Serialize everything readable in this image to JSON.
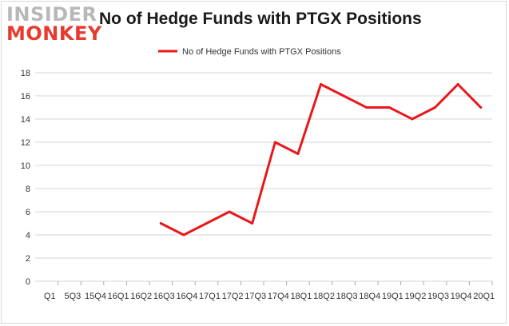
{
  "logo": {
    "line1": "INSIDER",
    "line2": "MONKEY"
  },
  "chart_data": {
    "type": "line",
    "title": "No of Hedge Funds with PTGX Positions",
    "categories": [
      "Q1",
      "5Q3",
      "15Q4",
      "16Q1",
      "16Q2",
      "16Q3",
      "16Q4",
      "17Q1",
      "17Q2",
      "17Q3",
      "17Q4",
      "18Q1",
      "18Q2",
      "18Q3",
      "18Q4",
      "19Q1",
      "19Q2",
      "19Q3",
      "19Q4",
      "20Q1"
    ],
    "series": [
      {
        "name": "No of Hedge Funds with PTGX Positions",
        "color": "#e8181c",
        "values": [
          null,
          null,
          null,
          null,
          null,
          5,
          4,
          5,
          6,
          5,
          12,
          11,
          17,
          16,
          15,
          15,
          14,
          15,
          17,
          15
        ]
      }
    ],
    "xlabel": "",
    "ylabel": "",
    "ylim": [
      0,
      18
    ],
    "yticks": [
      0,
      2,
      4,
      6,
      8,
      10,
      12,
      14,
      16,
      18
    ],
    "grid": true,
    "legend_position": "top-center"
  }
}
